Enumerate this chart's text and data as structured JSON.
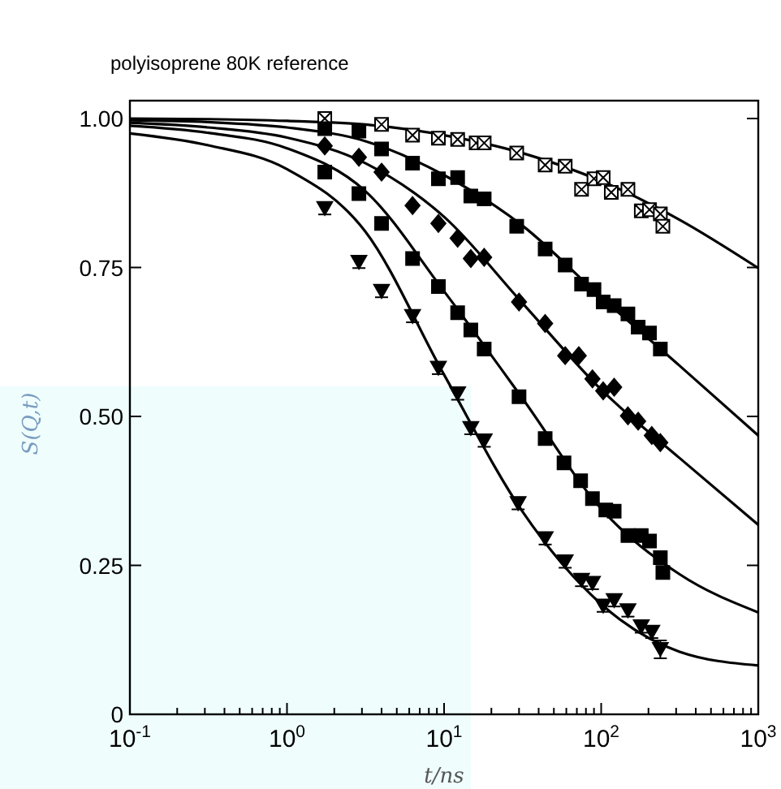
{
  "chart_data": {
    "type": "scatter",
    "title": "polyisoprene 80K reference",
    "xlabel": "t/ns",
    "ylabel": "S(Q,t)",
    "log": "x",
    "xlim": [
      0.1,
      1000
    ],
    "ylim": [
      0,
      1.03
    ],
    "xticks": [
      {
        "value": 0.1,
        "label": "10$^{-1}$"
      },
      {
        "value": 0.2,
        "label": null
      },
      {
        "value": 0.3,
        "label": null
      },
      {
        "value": 0.4,
        "label": null
      },
      {
        "value": 0.5,
        "label": null
      },
      {
        "value": 0.6,
        "label": null
      },
      {
        "value": 0.7,
        "label": null
      },
      {
        "value": 0.8,
        "label": null
      },
      {
        "value": 0.9,
        "label": null
      },
      {
        "value": 1,
        "label": "10$^{0}$"
      },
      {
        "value": 2,
        "label": null
      },
      {
        "value": 3,
        "label": null
      },
      {
        "value": 4,
        "label": null
      },
      {
        "value": 5,
        "label": null
      },
      {
        "value": 6,
        "label": null
      },
      {
        "value": 7,
        "label": null
      },
      {
        "value": 8,
        "label": null
      },
      {
        "value": 9,
        "label": null
      },
      {
        "value": 10,
        "label": "10$^{1}$"
      },
      {
        "value": 20,
        "label": null
      },
      {
        "value": 30,
        "label": null
      },
      {
        "value": 40,
        "label": null
      },
      {
        "value": 50,
        "label": null
      },
      {
        "value": 60,
        "label": null
      },
      {
        "value": 70,
        "label": null
      },
      {
        "value": 80,
        "label": null
      },
      {
        "value": 90,
        "label": null
      },
      {
        "value": 100,
        "label": "10$^{2}$"
      },
      {
        "value": 200,
        "label": null
      },
      {
        "value": 300,
        "label": null
      },
      {
        "value": 400,
        "label": null
      },
      {
        "value": 500,
        "label": null
      },
      {
        "value": 600,
        "label": null
      },
      {
        "value": 700,
        "label": null
      },
      {
        "value": 800,
        "label": null
      },
      {
        "value": 900,
        "label": null
      },
      {
        "value": 1000,
        "label": "10$^{3}$"
      }
    ],
    "yticks": [
      0,
      {
        "value": 0.25,
        "label": "0.25"
      },
      {
        "value": 0.5,
        "label": "0.50"
      },
      0.75,
      {
        "value": 1,
        "label": "1.00"
      }
    ],
    "grid": false,
    "series": [
      {
        "color": "#000000",
        "marker": "cross",
        "x": [
          1.74,
          4.0,
          6.3,
          9.2,
          12.2,
          16.0,
          18.0,
          29,
          44,
          59,
          75,
          90,
          103,
          116,
          148,
          180,
          203,
          238,
          247
        ],
        "values": [
          1.0,
          0.99,
          0.972,
          0.967,
          0.965,
          0.959,
          0.959,
          0.942,
          0.922,
          0.92,
          0.881,
          0.899,
          0.901,
          0.876,
          0.881,
          0.845,
          0.847,
          0.84,
          0.819
        ]
      },
      {
        "color": "#000000",
        "marker": "square",
        "x": [
          1.74,
          2.87,
          4.0,
          6.3,
          9.2,
          12.2,
          14.8,
          18.0,
          29,
          44,
          59,
          75,
          90,
          103,
          121,
          148,
          172,
          203,
          238
        ],
        "values": [
          0.983,
          0.979,
          0.949,
          0.925,
          0.899,
          0.901,
          0.87,
          0.865,
          0.819,
          0.781,
          0.754,
          0.722,
          0.713,
          0.692,
          0.686,
          0.672,
          0.65,
          0.64,
          0.613
        ]
      },
      {
        "color": "#000000",
        "marker": "diamond",
        "x": [
          1.74,
          2.87,
          4.0,
          6.3,
          9.2,
          12.2,
          14.8,
          18.0,
          30,
          44,
          59,
          72,
          88,
          103,
          121,
          148,
          172,
          210,
          238
        ],
        "values": [
          0.954,
          0.935,
          0.91,
          0.854,
          0.824,
          0.799,
          0.765,
          0.767,
          0.692,
          0.656,
          0.602,
          0.602,
          0.563,
          0.543,
          0.549,
          0.501,
          0.492,
          0.468,
          0.456
        ]
      },
      {
        "color": "#000000",
        "marker": "square",
        "x": [
          1.74,
          2.87,
          4.0,
          6.3,
          9.2,
          12.2,
          14.8,
          18.0,
          30,
          44,
          58,
          74,
          88,
          107,
          121,
          148,
          180,
          203,
          238,
          247
        ],
        "values": [
          0.91,
          0.874,
          0.824,
          0.765,
          0.718,
          0.674,
          0.645,
          0.613,
          0.533,
          0.463,
          0.422,
          0.392,
          0.362,
          0.343,
          0.341,
          0.3,
          0.3,
          0.291,
          0.263,
          0.238
        ]
      },
      {
        "color": "#000000",
        "marker": "triangle",
        "x": [
          1.74,
          2.87,
          4.0,
          6.3,
          9.2,
          12.2,
          14.8,
          18.0,
          29.6,
          44,
          59,
          75,
          88,
          103,
          121,
          148,
          180,
          210,
          238
        ],
        "values": [
          0.849,
          0.759,
          0.71,
          0.668,
          0.581,
          0.538,
          0.48,
          0.459,
          0.354,
          0.295,
          0.256,
          0.225,
          0.22,
          0.182,
          0.191,
          0.174,
          0.147,
          0.138,
          0.109
        ],
        "errors": [
          0.01,
          0.01,
          0.01,
          0.01,
          0.01,
          0.01,
          0.01,
          0.01,
          0.01,
          0.01,
          0.01,
          0.01,
          0.01,
          0.01,
          0.01,
          0.01,
          0.01,
          0.01,
          0.015
        ]
      },
      {
        "type": "line",
        "color": "#000000",
        "x": [
          0.1,
          0.316,
          1,
          3.16,
          10,
          31.6,
          100,
          316,
          1000
        ],
        "values": [
          1.0,
          0.999,
          0.996,
          0.99,
          0.972,
          0.942,
          0.895,
          0.83,
          0.749
        ]
      },
      {
        "type": "line",
        "color": "#000000",
        "x": [
          0.1,
          0.316,
          1,
          3.16,
          10,
          31.6,
          100,
          316,
          1000
        ],
        "values": [
          0.997,
          0.994,
          0.985,
          0.962,
          0.905,
          0.82,
          0.7,
          0.585,
          0.468
        ]
      },
      {
        "type": "line",
        "color": "#000000",
        "x": [
          0.1,
          0.316,
          1,
          3.16,
          10,
          31.6,
          100,
          316,
          1000
        ],
        "values": [
          0.993,
          0.985,
          0.968,
          0.925,
          0.835,
          0.69,
          0.545,
          0.43,
          0.318
        ]
      },
      {
        "type": "line",
        "color": "#000000",
        "x": [
          0.1,
          0.316,
          1,
          3.16,
          10,
          31.6,
          100,
          316,
          1000
        ],
        "values": [
          0.988,
          0.976,
          0.95,
          0.878,
          0.71,
          0.53,
          0.345,
          0.235,
          0.171
        ]
      },
      {
        "type": "line",
        "color": "#000000",
        "x": [
          0.1,
          0.316,
          1,
          3.16,
          10,
          31.6,
          100,
          316,
          1000
        ],
        "values": [
          0.975,
          0.955,
          0.915,
          0.81,
          0.57,
          0.34,
          0.185,
          0.105,
          0.082
        ]
      }
    ]
  }
}
